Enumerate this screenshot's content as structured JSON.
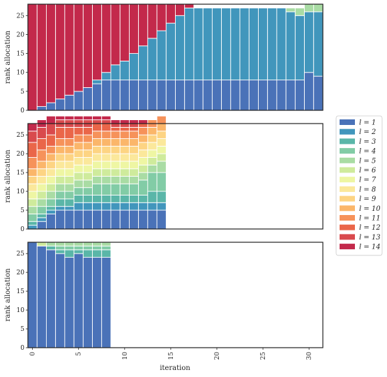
{
  "chart_data": [
    {
      "type": "stacked-bar",
      "ylabel": "rank allocation",
      "xlabel": "",
      "ylim": [
        0,
        28
      ],
      "xlim": [
        -0.5,
        31.5
      ],
      "yticks": [
        0,
        5,
        10,
        15,
        20,
        25
      ],
      "show_xticklabels": false,
      "grid": false,
      "iterations": [
        0,
        1,
        2,
        3,
        4,
        5,
        6,
        7,
        8,
        9,
        10,
        11,
        12,
        13,
        14,
        15,
        16,
        17,
        18,
        19,
        20,
        21,
        22,
        23,
        24,
        25,
        26,
        27,
        28,
        29,
        30,
        31
      ],
      "series": [
        {
          "name": "l = 1",
          "values": [
            0,
            1,
            2,
            3,
            4,
            5,
            6,
            7,
            8,
            8,
            8,
            8,
            8,
            8,
            8,
            8,
            8,
            8,
            8,
            8,
            8,
            8,
            8,
            8,
            8,
            8,
            8,
            8,
            8,
            8,
            10,
            9
          ]
        },
        {
          "name": "l = 2",
          "values": [
            0,
            0,
            0,
            0,
            0,
            0,
            0,
            1,
            2,
            4,
            5,
            7,
            9,
            11,
            13,
            15,
            17,
            19,
            19,
            19,
            19,
            19,
            19,
            19,
            19,
            19,
            19,
            19,
            18,
            17,
            16,
            17
          ]
        },
        {
          "name": "l = 5",
          "values": [
            0,
            0,
            0,
            0,
            0,
            0,
            0,
            0,
            0,
            0,
            0,
            0,
            0,
            0,
            0,
            0,
            0,
            0,
            0,
            0,
            0,
            0,
            0,
            0,
            0,
            0,
            0,
            0,
            1,
            2,
            2,
            2
          ]
        },
        {
          "name": "l = 14",
          "values": [
            28,
            27,
            26,
            25,
            24,
            23,
            22,
            20,
            18,
            16,
            15,
            13,
            11,
            9,
            7,
            5,
            3,
            1,
            0,
            0,
            0,
            0,
            0,
            0,
            0,
            0,
            0,
            0,
            0,
            0,
            0,
            0
          ]
        }
      ]
    },
    {
      "type": "stacked-bar",
      "ylabel": "rank allocation",
      "xlabel": "",
      "ylim": [
        0,
        28
      ],
      "xlim": [
        -0.5,
        31.5
      ],
      "yticks": [
        0,
        5,
        10,
        15,
        20,
        25
      ],
      "show_xticklabels": false,
      "grid": false,
      "iterations": [
        0,
        1,
        2,
        3,
        4,
        5,
        6,
        7,
        8,
        9,
        10,
        11,
        12,
        13,
        14
      ],
      "series": [
        {
          "name": "l = 1",
          "values": [
            0,
            2,
            4,
            5,
            5,
            5,
            5,
            5,
            5,
            5,
            5,
            5,
            5,
            5,
            5
          ]
        },
        {
          "name": "l = 2",
          "values": [
            1,
            1,
            1,
            1,
            1,
            2,
            2,
            2,
            2,
            2,
            2,
            2,
            2,
            2,
            2
          ]
        },
        {
          "name": "l = 3",
          "values": [
            1,
            1,
            1,
            2,
            2,
            2,
            2,
            2,
            2,
            2,
            2,
            2,
            2,
            3,
            3
          ]
        },
        {
          "name": "l = 4",
          "values": [
            2,
            2,
            2,
            2,
            2,
            2,
            2,
            3,
            3,
            3,
            3,
            3,
            4,
            5,
            5
          ]
        },
        {
          "name": "l = 5",
          "values": [
            2,
            2,
            2,
            2,
            2,
            2,
            2,
            2,
            2,
            2,
            2,
            2,
            2,
            2,
            3
          ]
        },
        {
          "name": "l = 6",
          "values": [
            2,
            2,
            2,
            2,
            2,
            2,
            2,
            2,
            2,
            2,
            2,
            2,
            2,
            2,
            2
          ]
        },
        {
          "name": "l = 7",
          "values": [
            2,
            2,
            2,
            2,
            2,
            2,
            2,
            2,
            2,
            2,
            2,
            2,
            2,
            2,
            2
          ]
        },
        {
          "name": "l = 8",
          "values": [
            2,
            2,
            2,
            2,
            2,
            2,
            2,
            2,
            2,
            2,
            2,
            2,
            2,
            2,
            2
          ]
        },
        {
          "name": "l = 9",
          "values": [
            2,
            2,
            2,
            2,
            2,
            2,
            2,
            2,
            2,
            2,
            2,
            2,
            2,
            2,
            2
          ]
        },
        {
          "name": "l = 10",
          "values": [
            2,
            2,
            2,
            2,
            2,
            2,
            2,
            2,
            2,
            2,
            2,
            2,
            2,
            2,
            2
          ]
        },
        {
          "name": "l = 11",
          "values": [
            3,
            3,
            2,
            2,
            2,
            2,
            2,
            2,
            2,
            2,
            2,
            2,
            2,
            2,
            2
          ]
        },
        {
          "name": "l = 12",
          "values": [
            4,
            3,
            3,
            3,
            3,
            2,
            2,
            2,
            2,
            1,
            1,
            1,
            1,
            0,
            0
          ]
        },
        {
          "name": "l = 13",
          "values": [
            3,
            3,
            3,
            2,
            2,
            2,
            2,
            1,
            1,
            1,
            1,
            1,
            0,
            0,
            0
          ]
        },
        {
          "name": "l = 14",
          "values": [
            2,
            2,
            2,
            1,
            1,
            1,
            1,
            1,
            1,
            1,
            1,
            1,
            1,
            0,
            0
          ]
        }
      ]
    },
    {
      "type": "stacked-bar",
      "ylabel": "rank allocation",
      "xlabel": "iteration",
      "ylim": [
        0,
        28
      ],
      "xlim": [
        -0.5,
        31.5
      ],
      "yticks": [
        0,
        5,
        10,
        15,
        20,
        25
      ],
      "xticks": [
        0,
        5,
        10,
        15,
        20,
        25,
        30
      ],
      "show_xticklabels": true,
      "grid": false,
      "iterations": [
        0,
        1,
        2,
        3,
        4,
        5,
        6,
        7,
        8
      ],
      "series": [
        {
          "name": "l = 1",
          "values": [
            28,
            27,
            26,
            25,
            24,
            25,
            24,
            24,
            24
          ]
        },
        {
          "name": "l = 3",
          "values": [
            0,
            0,
            1,
            1,
            2,
            1,
            2,
            2,
            2
          ]
        },
        {
          "name": "l = 4",
          "values": [
            0,
            0,
            0,
            1,
            1,
            1,
            1,
            1,
            1
          ]
        },
        {
          "name": "l = 5",
          "values": [
            0,
            0,
            1,
            1,
            1,
            1,
            1,
            1,
            1
          ]
        },
        {
          "name": "l = 6",
          "values": [
            0,
            1,
            0,
            0,
            0,
            0,
            0,
            0,
            0
          ]
        }
      ]
    }
  ],
  "legend": {
    "placement": "right",
    "entries": [
      {
        "label": "l = 1",
        "color": "#4a72b8"
      },
      {
        "label": "l = 2",
        "color": "#4196bc"
      },
      {
        "label": "l = 3",
        "color": "#5ab6a8"
      },
      {
        "label": "l = 4",
        "color": "#82cca6"
      },
      {
        "label": "l = 5",
        "color": "#a9dca4"
      },
      {
        "label": "l = 6",
        "color": "#cfeb9c"
      },
      {
        "label": "l = 7",
        "color": "#eef6a3"
      },
      {
        "label": "l = 8",
        "color": "#fbe89b"
      },
      {
        "label": "l = 9",
        "color": "#fdd483"
      },
      {
        "label": "l = 10",
        "color": "#fbb66a"
      },
      {
        "label": "l = 11",
        "color": "#f6925a"
      },
      {
        "label": "l = 12",
        "color": "#ea6649"
      },
      {
        "label": "l = 13",
        "color": "#d94a4d"
      },
      {
        "label": "l = 14",
        "color": "#c3294b"
      }
    ]
  }
}
